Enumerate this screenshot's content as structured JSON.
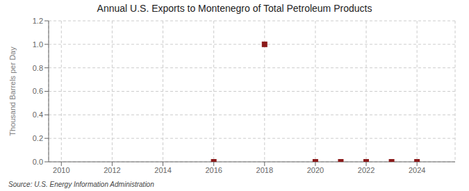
{
  "chart_data": {
    "type": "scatter",
    "title": "Annual U.S. Exports to Montenegro of Total Petroleum Products",
    "y_label": "Thousand Barrels per Day",
    "annotations": [
      "Source: U.S. Energy Information Administration"
    ],
    "x": [
      2016,
      2018,
      2020,
      2021,
      2022,
      2023,
      2024
    ],
    "values": [
      0.0,
      1.0,
      0.0,
      0.0,
      0.0,
      0.0,
      0.0
    ],
    "color": "#8b1a1a",
    "marker": "square",
    "xlim": [
      2009.5,
      2025.5
    ],
    "xticks": [
      2010,
      2012,
      2014,
      2016,
      2018,
      2020,
      2022,
      2024
    ],
    "ylim": [
      0.0,
      1.2
    ],
    "yticks": [
      {
        "value": 0,
        "label": "0.0"
      },
      0.2,
      0.4,
      0.6,
      0.8,
      {
        "value": 1,
        "label": "1.0"
      },
      1.2
    ],
    "grid": true
  }
}
